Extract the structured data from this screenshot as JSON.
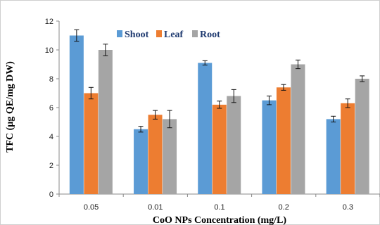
{
  "chart_data": {
    "type": "bar",
    "title": "",
    "xlabel": "CoO NPs Concentration (mg/L)",
    "ylabel": "TFC (µg QE/mg DW)",
    "categories": [
      "0.05",
      "0.01",
      "0.1",
      "0.2",
      "0.3"
    ],
    "ylim": [
      0,
      12
    ],
    "yticks": [
      0,
      2,
      4,
      6,
      8,
      10,
      12
    ],
    "grid": false,
    "legend_position": "top-center",
    "series": [
      {
        "name": "Shoot",
        "color": "#5B9BD5",
        "values": [
          11.0,
          4.5,
          9.1,
          6.5,
          5.2
        ],
        "errors": [
          0.4,
          0.2,
          0.15,
          0.3,
          0.2
        ]
      },
      {
        "name": "Leaf",
        "color": "#ED7D31",
        "values": [
          7.0,
          5.5,
          6.2,
          7.4,
          6.3
        ],
        "errors": [
          0.4,
          0.3,
          0.25,
          0.2,
          0.3
        ]
      },
      {
        "name": "Root",
        "color": "#A5A5A5",
        "values": [
          10.0,
          5.2,
          6.8,
          9.0,
          8.0
        ],
        "errors": [
          0.4,
          0.6,
          0.45,
          0.3,
          0.2
        ]
      }
    ]
  }
}
